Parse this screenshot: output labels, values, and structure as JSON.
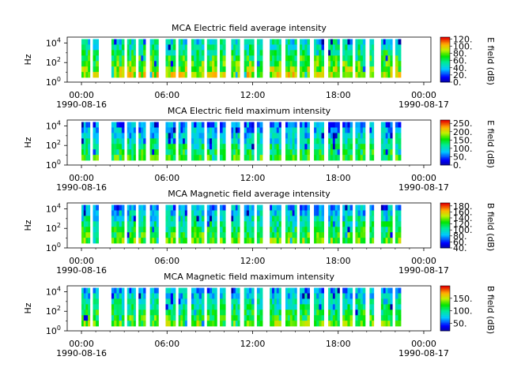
{
  "chart_data": [
    {
      "type": "heatmap",
      "title": "MCA  Electric field average intensity",
      "ylabel": "Hz",
      "y_scale": "log",
      "ylim": [
        1,
        40000
      ],
      "y_ticks": [
        {
          "exp": "0",
          "value": 1
        },
        {
          "exp": "2",
          "value": 100
        },
        {
          "exp": "4",
          "value": 10000
        }
      ],
      "x_ticks": [
        {
          "time": "00:00",
          "date": "1990-08-16",
          "hour": 0
        },
        {
          "time": "06:00",
          "date": "",
          "hour": 6
        },
        {
          "time": "12:00",
          "date": "",
          "hour": 12
        },
        {
          "time": "18:00",
          "date": "",
          "hour": 18
        },
        {
          "time": "00:00",
          "date": "1990-08-17",
          "hour": 24
        }
      ],
      "xlim_hours": [
        -1,
        24.5
      ],
      "colorbar": {
        "label": "E field (dB)",
        "min": 0,
        "max": 125,
        "ticks": [
          "0.",
          "20.",
          "40.",
          "60.",
          "80.",
          "100.",
          "120."
        ],
        "tick_values": [
          0,
          20,
          40,
          60,
          80,
          100,
          120
        ]
      },
      "palette": "rainbow",
      "base_level": 0.55,
      "data_intervals_hours": [
        [
          0.0,
          0.6
        ],
        [
          0.8,
          1.2
        ],
        [
          2.1,
          3.0
        ],
        [
          3.2,
          3.8
        ],
        [
          4.0,
          4.5
        ],
        [
          4.8,
          5.4
        ],
        [
          5.9,
          6.6
        ],
        [
          6.8,
          7.4
        ],
        [
          7.7,
          8.6
        ],
        [
          8.8,
          9.5
        ],
        [
          9.7,
          10.1
        ],
        [
          10.5,
          11.1
        ],
        [
          11.4,
          12.1
        ],
        [
          12.3,
          12.7
        ],
        [
          13.2,
          14.0
        ],
        [
          14.3,
          15.1
        ],
        [
          15.3,
          16.0
        ],
        [
          16.3,
          17.0
        ],
        [
          17.3,
          18.1
        ],
        [
          18.3,
          19.0
        ],
        [
          19.2,
          19.9
        ],
        [
          20.2,
          20.5
        ],
        [
          21.0,
          21.8
        ],
        [
          22.0,
          22.4
        ]
      ]
    },
    {
      "type": "heatmap",
      "title": "MCA  Electric field maximum intensity",
      "ylabel": "Hz",
      "y_scale": "log",
      "ylim": [
        1,
        40000
      ],
      "y_ticks": [
        {
          "exp": "0",
          "value": 1
        },
        {
          "exp": "2",
          "value": 100
        },
        {
          "exp": "4",
          "value": 10000
        }
      ],
      "x_ticks": [
        {
          "time": "00:00",
          "date": "1990-08-16",
          "hour": 0
        },
        {
          "time": "06:00",
          "date": "",
          "hour": 6
        },
        {
          "time": "12:00",
          "date": "",
          "hour": 12
        },
        {
          "time": "18:00",
          "date": "",
          "hour": 18
        },
        {
          "time": "00:00",
          "date": "1990-08-17",
          "hour": 24
        }
      ],
      "xlim_hours": [
        -1,
        24.5
      ],
      "colorbar": {
        "label": "E field (dB)",
        "min": 0,
        "max": 270,
        "ticks": [
          "0.",
          "50.",
          "100.",
          "150.",
          "200.",
          "250."
        ],
        "tick_values": [
          0,
          50,
          100,
          150,
          200,
          250
        ]
      },
      "palette": "rainbow",
      "base_level": 0.4,
      "data_intervals_hours": [
        [
          0.0,
          0.6
        ],
        [
          0.8,
          1.2
        ],
        [
          2.1,
          3.0
        ],
        [
          3.2,
          3.8
        ],
        [
          4.0,
          4.5
        ],
        [
          4.8,
          5.4
        ],
        [
          5.9,
          6.6
        ],
        [
          6.8,
          7.4
        ],
        [
          7.7,
          8.6
        ],
        [
          8.8,
          9.5
        ],
        [
          9.7,
          10.1
        ],
        [
          10.5,
          11.1
        ],
        [
          11.4,
          12.1
        ],
        [
          12.3,
          12.7
        ],
        [
          13.2,
          14.0
        ],
        [
          14.3,
          15.1
        ],
        [
          15.3,
          16.0
        ],
        [
          16.3,
          17.0
        ],
        [
          17.3,
          18.1
        ],
        [
          18.3,
          19.0
        ],
        [
          19.2,
          19.9
        ],
        [
          20.2,
          20.5
        ],
        [
          21.0,
          21.8
        ],
        [
          22.0,
          22.4
        ]
      ]
    },
    {
      "type": "heatmap",
      "title": "MCA  Magnetic field average intensity",
      "ylabel": "Hz",
      "y_scale": "log",
      "ylim": [
        1,
        40000
      ],
      "y_ticks": [
        {
          "exp": "0",
          "value": 1
        },
        {
          "exp": "2",
          "value": 100
        },
        {
          "exp": "4",
          "value": 10000
        }
      ],
      "x_ticks": [
        {
          "time": "00:00",
          "date": "1990-08-16",
          "hour": 0
        },
        {
          "time": "06:00",
          "date": "",
          "hour": 6
        },
        {
          "time": "12:00",
          "date": "",
          "hour": 12
        },
        {
          "time": "18:00",
          "date": "",
          "hour": 18
        },
        {
          "time": "00:00",
          "date": "1990-08-17",
          "hour": 24
        }
      ],
      "xlim_hours": [
        -1,
        24.5
      ],
      "colorbar": {
        "label": "B field (dB)",
        "min": 40,
        "max": 190,
        "ticks": [
          "40.",
          "60.",
          "80.",
          "100.",
          "120.",
          "140.",
          "160.",
          "180."
        ],
        "tick_values": [
          40,
          60,
          80,
          100,
          120,
          140,
          160,
          180
        ]
      },
      "palette": "rainbow",
      "base_level": 0.45,
      "data_intervals_hours": [
        [
          0.0,
          0.6
        ],
        [
          0.8,
          1.2
        ],
        [
          2.1,
          3.0
        ],
        [
          3.2,
          3.8
        ],
        [
          4.0,
          4.5
        ],
        [
          4.8,
          5.4
        ],
        [
          5.9,
          6.6
        ],
        [
          6.8,
          7.4
        ],
        [
          7.7,
          8.6
        ],
        [
          8.8,
          9.5
        ],
        [
          9.7,
          10.1
        ],
        [
          10.5,
          11.1
        ],
        [
          11.4,
          12.1
        ],
        [
          12.3,
          12.7
        ],
        [
          13.2,
          14.0
        ],
        [
          14.3,
          15.1
        ],
        [
          15.3,
          16.0
        ],
        [
          16.3,
          17.0
        ],
        [
          17.3,
          18.1
        ],
        [
          18.3,
          19.0
        ],
        [
          19.2,
          19.9
        ],
        [
          20.2,
          20.5
        ],
        [
          21.0,
          21.8
        ],
        [
          22.0,
          22.4
        ]
      ]
    },
    {
      "type": "heatmap",
      "title": "MCA  Magnetic field maximum intensity",
      "ylabel": "Hz",
      "y_scale": "log",
      "ylim": [
        1,
        40000
      ],
      "y_ticks": [
        {
          "exp": "0",
          "value": 1
        },
        {
          "exp": "2",
          "value": 100
        },
        {
          "exp": "4",
          "value": 10000
        }
      ],
      "x_ticks": [
        {
          "time": "00:00",
          "date": "1990-08-16",
          "hour": 0
        },
        {
          "time": "06:00",
          "date": "",
          "hour": 6
        },
        {
          "time": "12:00",
          "date": "",
          "hour": 12
        },
        {
          "time": "18:00",
          "date": "",
          "hour": 18
        },
        {
          "time": "00:00",
          "date": "1990-08-17",
          "hour": 24
        }
      ],
      "xlim_hours": [
        -1,
        24.5
      ],
      "colorbar": {
        "label": "B field (dB)",
        "min": 20,
        "max": 200,
        "ticks": [
          "50.",
          "100.",
          "150."
        ],
        "tick_values": [
          50,
          100,
          150
        ]
      },
      "palette": "rainbow",
      "base_level": 0.45,
      "data_intervals_hours": [
        [
          0.0,
          0.6
        ],
        [
          0.8,
          1.2
        ],
        [
          2.1,
          3.0
        ],
        [
          3.2,
          3.8
        ],
        [
          4.0,
          4.5
        ],
        [
          4.8,
          5.4
        ],
        [
          5.9,
          6.6
        ],
        [
          6.8,
          7.4
        ],
        [
          7.7,
          8.6
        ],
        [
          8.8,
          9.5
        ],
        [
          9.7,
          10.1
        ],
        [
          10.5,
          11.1
        ],
        [
          11.4,
          12.1
        ],
        [
          12.3,
          12.7
        ],
        [
          13.2,
          14.0
        ],
        [
          14.3,
          15.1
        ],
        [
          15.3,
          16.0
        ],
        [
          16.3,
          17.0
        ],
        [
          17.3,
          18.1
        ],
        [
          18.3,
          19.0
        ],
        [
          19.2,
          19.9
        ],
        [
          20.2,
          20.5
        ],
        [
          21.0,
          21.8
        ],
        [
          22.0,
          22.4
        ]
      ]
    }
  ]
}
